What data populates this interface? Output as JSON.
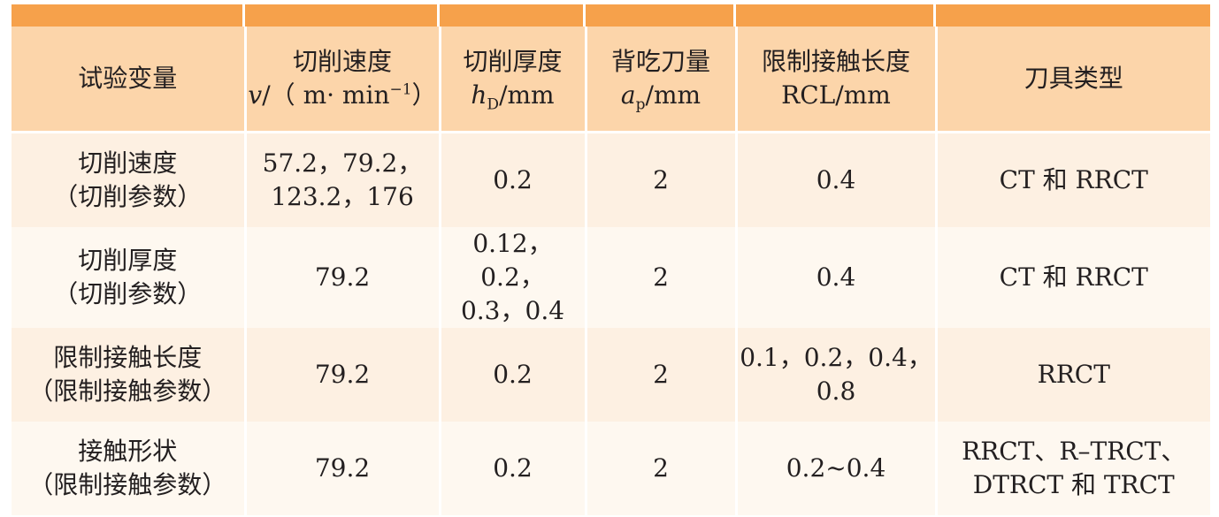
{
  "table": {
    "header": {
      "c0": [
        "试验变量"
      ],
      "c1": {
        "line1": "切削速度",
        "line2": [
          "v",
          "/（ m· min",
          "−1",
          "）"
        ]
      },
      "c2": {
        "line1": "切削厚度",
        "line2": [
          "h",
          "D",
          "/mm"
        ]
      },
      "c3": {
        "line1": "背吃刀量",
        "line2": [
          "a",
          "p",
          "/mm"
        ]
      },
      "c4": [
        "限制接触长度",
        "RCL/mm"
      ],
      "c5": [
        "刀具类型"
      ]
    },
    "rows": [
      [
        [
          "切削速度",
          "（切削参数）"
        ],
        [
          "57.2，79.2，",
          "123.2，176"
        ],
        [
          "0.2"
        ],
        [
          "2"
        ],
        [
          "0.4"
        ],
        [
          "CT 和 RRCT"
        ]
      ],
      [
        [
          "切削厚度",
          "（切削参数）"
        ],
        [
          "79.2"
        ],
        [
          "0.12，0.2，",
          "0.3，0.4"
        ],
        [
          "2"
        ],
        [
          "0.4"
        ],
        [
          "CT 和 RRCT"
        ]
      ],
      [
        [
          "限制接触长度",
          "（限制接触参数）"
        ],
        [
          "79.2"
        ],
        [
          "0.2"
        ],
        [
          "2"
        ],
        [
          "0.1，0.2，0.4，",
          "0.8"
        ],
        [
          "RRCT"
        ]
      ],
      [
        [
          "接触形状",
          "（限制接触参数）"
        ],
        [
          "79.2"
        ],
        [
          "0.2"
        ],
        [
          "2"
        ],
        [
          "0.2~0.4"
        ],
        [
          "RRCT、R–TRCT、",
          "DTRCT 和 TRCT"
        ]
      ]
    ]
  }
}
